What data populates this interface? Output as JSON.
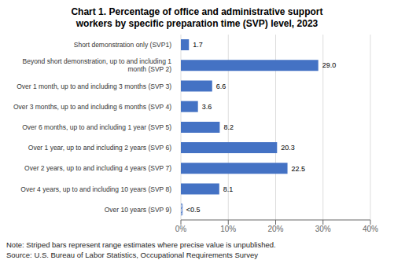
{
  "chart_data": {
    "type": "bar",
    "orientation": "horizontal",
    "title": "Chart 1. Percentage of office and administrative support\nworkers by specific preparation time (SVP) level, 2023",
    "categories": [
      "Short demonstration only (SVP1)",
      "Beyond short demonstration, up to and including 1\nmonth (SVP 2)",
      "Over 1 month, up to and including 3 months (SVP 3)",
      "Over 3 months, up to and including 6 months (SVP 4)",
      "Over 6 months, up to and including 1 year (SVP 5)",
      "Over 1 year, up to and including 2 years (SVP 6)",
      "Over 2 years, up to and including 4 years (SVP 7)",
      "Over 4 years, up to and including 10 years (SVP 8)",
      "Over 10 years (SVP 9)"
    ],
    "values": [
      1.7,
      29.0,
      6.6,
      3.6,
      8.2,
      20.3,
      22.5,
      8.1,
      0.3
    ],
    "value_labels": [
      "1.7",
      "29.0",
      "6.6",
      "3.6",
      "8.2",
      "20.3",
      "22.5",
      "8.1",
      "<0.5"
    ],
    "color": "#4472C4",
    "xlim": [
      0,
      40
    ],
    "xticks": [
      {
        "value": 0,
        "label": "0%"
      },
      {
        "value": 10,
        "label": "10%"
      },
      {
        "value": 20,
        "label": "20%"
      },
      {
        "value": 30,
        "label": "30%"
      },
      {
        "value": 40,
        "label": "40%"
      }
    ],
    "grid": true,
    "data_labels": true,
    "annotations": [
      "Note: Striped bars represent range estimates where precise value is unpublished.\nSource: U.S. Bureau of Labor Statistics, Occupational Requirements Survey"
    ]
  }
}
